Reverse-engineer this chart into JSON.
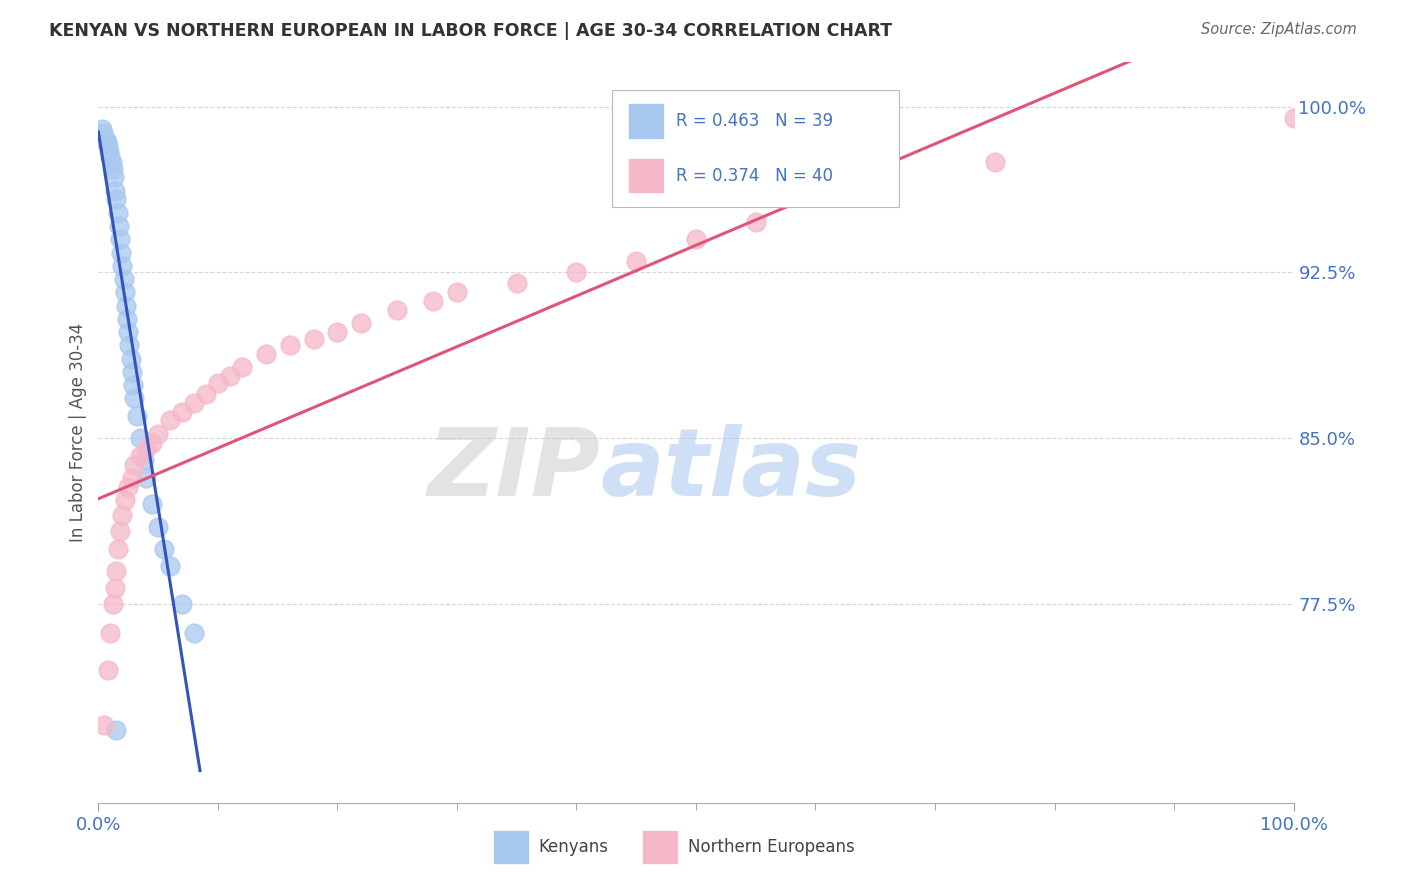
{
  "title": "KENYAN VS NORTHERN EUROPEAN IN LABOR FORCE | AGE 30-34 CORRELATION CHART",
  "source": "Source: ZipAtlas.com",
  "ylabel": "In Labor Force | Age 30-34",
  "watermark_zip": "ZIP",
  "watermark_atlas": "atlas",
  "kenyan_R": 0.463,
  "kenyan_N": 39,
  "northern_R": 0.374,
  "northern_N": 40,
  "xlim": [
    0.0,
    100.0
  ],
  "ylim": [
    0.685,
    1.02
  ],
  "ytick_right": [
    0.775,
    0.85,
    0.925,
    1.0
  ],
  "ytick_right_labels": [
    "77.5%",
    "85.0%",
    "92.5%",
    "100.0%"
  ],
  "kenyan_color": "#A8C8F0",
  "northern_color": "#F5B8C8",
  "kenyan_line_color": "#3355BB",
  "northern_line_color": "#E05575",
  "background_color": "#FFFFFF",
  "grid_color": "#CCCCCC",
  "title_color": "#333333",
  "right_tick_color": "#4472C4",
  "legend_color": "#4472C4",
  "kenyan_x": [
    0.3,
    0.4,
    0.5,
    0.6,
    0.7,
    0.8,
    0.9,
    1.0,
    1.1,
    1.2,
    1.3,
    1.4,
    1.5,
    1.6,
    1.7,
    1.8,
    1.9,
    2.0,
    2.1,
    2.2,
    2.3,
    2.4,
    2.5,
    2.6,
    2.7,
    2.8,
    2.9,
    3.0,
    3.2,
    3.5,
    3.8,
    4.0,
    4.5,
    5.0,
    5.5,
    6.0,
    7.0,
    8.0,
    1.5
  ],
  "kenyan_y": [
    0.99,
    0.988,
    0.985,
    0.985,
    0.984,
    0.982,
    0.98,
    0.977,
    0.975,
    0.972,
    0.968,
    0.962,
    0.958,
    0.952,
    0.946,
    0.94,
    0.934,
    0.928,
    0.922,
    0.916,
    0.91,
    0.904,
    0.898,
    0.892,
    0.886,
    0.88,
    0.874,
    0.868,
    0.86,
    0.85,
    0.84,
    0.832,
    0.82,
    0.81,
    0.8,
    0.792,
    0.775,
    0.762,
    0.718
  ],
  "northern_x": [
    0.5,
    0.8,
    1.0,
    1.2,
    1.4,
    1.5,
    1.6,
    1.8,
    2.0,
    2.2,
    2.5,
    2.8,
    3.0,
    3.5,
    4.0,
    4.5,
    5.0,
    6.0,
    7.0,
    8.0,
    9.0,
    10.0,
    11.0,
    12.0,
    14.0,
    16.0,
    18.0,
    20.0,
    22.0,
    25.0,
    28.0,
    30.0,
    35.0,
    40.0,
    45.0,
    50.0,
    55.0,
    65.0,
    75.0,
    100.0
  ],
  "northern_y": [
    0.72,
    0.745,
    0.762,
    0.775,
    0.782,
    0.79,
    0.8,
    0.808,
    0.815,
    0.822,
    0.828,
    0.832,
    0.838,
    0.842,
    0.845,
    0.848,
    0.852,
    0.858,
    0.862,
    0.866,
    0.87,
    0.875,
    0.878,
    0.882,
    0.888,
    0.892,
    0.895,
    0.898,
    0.902,
    0.908,
    0.912,
    0.916,
    0.92,
    0.925,
    0.93,
    0.94,
    0.948,
    0.962,
    0.975,
    0.995
  ]
}
